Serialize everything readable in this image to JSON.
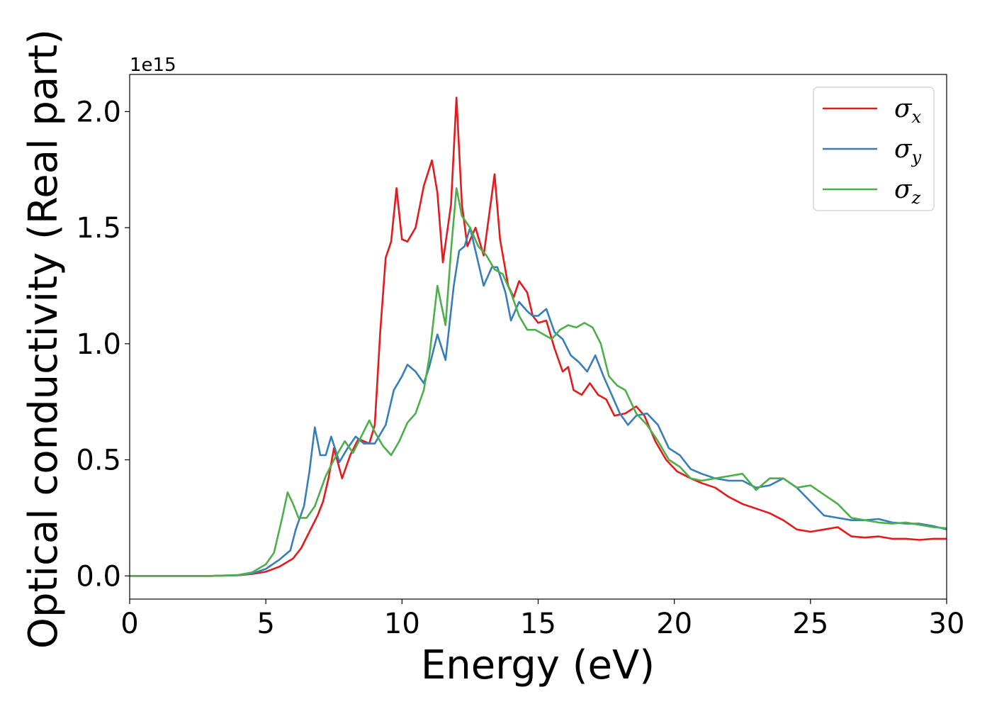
{
  "chart_data": {
    "type": "line",
    "xlabel": "Energy (eV)",
    "ylabel": "Optical conductivity (Real part)",
    "y_offset_text": "1e15",
    "xlim": [
      0,
      30
    ],
    "ylim": [
      -0.1,
      2.16
    ],
    "x_ticks": [
      0,
      5,
      10,
      15,
      20,
      25,
      30
    ],
    "x_tick_labels": [
      "0",
      "5",
      "10",
      "15",
      "20",
      "25",
      "30"
    ],
    "y_ticks": [
      0.0,
      0.5,
      1.0,
      1.5,
      2.0
    ],
    "y_tick_labels": [
      "0.0",
      "0.5",
      "1.0",
      "1.5",
      "2.0"
    ],
    "grid": false,
    "legend_position": "top-right",
    "series": [
      {
        "name": "σ",
        "subscript": "x",
        "color": "#e41a1c",
        "points": [
          [
            0,
            0
          ],
          [
            3,
            0
          ],
          [
            4,
            0.003
          ],
          [
            4.5,
            0.008
          ],
          [
            5,
            0.018
          ],
          [
            5.5,
            0.04
          ],
          [
            6,
            0.075
          ],
          [
            6.3,
            0.12
          ],
          [
            6.6,
            0.19
          ],
          [
            6.9,
            0.26
          ],
          [
            7.1,
            0.32
          ],
          [
            7.3,
            0.42
          ],
          [
            7.5,
            0.55
          ],
          [
            7.8,
            0.42
          ],
          [
            8.1,
            0.52
          ],
          [
            8.4,
            0.59
          ],
          [
            8.8,
            0.57
          ],
          [
            9.0,
            0.65
          ],
          [
            9.2,
            1.05
          ],
          [
            9.4,
            1.37
          ],
          [
            9.6,
            1.44
          ],
          [
            9.8,
            1.67
          ],
          [
            10.0,
            1.45
          ],
          [
            10.2,
            1.44
          ],
          [
            10.5,
            1.5
          ],
          [
            10.8,
            1.68
          ],
          [
            11.1,
            1.79
          ],
          [
            11.3,
            1.65
          ],
          [
            11.5,
            1.35
          ],
          [
            11.8,
            1.6
          ],
          [
            12.0,
            2.06
          ],
          [
            12.2,
            1.6
          ],
          [
            12.4,
            1.42
          ],
          [
            12.7,
            1.5
          ],
          [
            13.0,
            1.38
          ],
          [
            13.4,
            1.73
          ],
          [
            13.6,
            1.45
          ],
          [
            13.9,
            1.25
          ],
          [
            14.1,
            1.2
          ],
          [
            14.3,
            1.27
          ],
          [
            14.6,
            1.22
          ],
          [
            14.8,
            1.12
          ],
          [
            15.0,
            1.09
          ],
          [
            15.3,
            1.1
          ],
          [
            15.6,
            0.98
          ],
          [
            15.9,
            0.88
          ],
          [
            16.1,
            0.9
          ],
          [
            16.3,
            0.8
          ],
          [
            16.6,
            0.78
          ],
          [
            16.9,
            0.83
          ],
          [
            17.2,
            0.78
          ],
          [
            17.5,
            0.76
          ],
          [
            17.8,
            0.69
          ],
          [
            18.2,
            0.7
          ],
          [
            18.6,
            0.73
          ],
          [
            18.9,
            0.69
          ],
          [
            19.3,
            0.58
          ],
          [
            19.7,
            0.5
          ],
          [
            20.1,
            0.45
          ],
          [
            20.6,
            0.42
          ],
          [
            21.0,
            0.4
          ],
          [
            21.5,
            0.38
          ],
          [
            22.0,
            0.34
          ],
          [
            22.5,
            0.31
          ],
          [
            23.0,
            0.29
          ],
          [
            23.5,
            0.27
          ],
          [
            24.0,
            0.24
          ],
          [
            24.5,
            0.2
          ],
          [
            25.0,
            0.19
          ],
          [
            25.5,
            0.2
          ],
          [
            26.0,
            0.21
          ],
          [
            26.5,
            0.17
          ],
          [
            27.0,
            0.165
          ],
          [
            27.5,
            0.17
          ],
          [
            28.0,
            0.16
          ],
          [
            28.5,
            0.16
          ],
          [
            29.0,
            0.155
          ],
          [
            29.5,
            0.16
          ],
          [
            30,
            0.16
          ]
        ]
      },
      {
        "name": "σ",
        "subscript": "y",
        "color": "#377eb8",
        "points": [
          [
            0,
            0
          ],
          [
            3,
            0
          ],
          [
            4,
            0.003
          ],
          [
            4.5,
            0.01
          ],
          [
            5,
            0.03
          ],
          [
            5.5,
            0.07
          ],
          [
            5.9,
            0.11
          ],
          [
            6.1,
            0.2
          ],
          [
            6.4,
            0.3
          ],
          [
            6.6,
            0.45
          ],
          [
            6.8,
            0.64
          ],
          [
            7.0,
            0.52
          ],
          [
            7.2,
            0.52
          ],
          [
            7.4,
            0.6
          ],
          [
            7.7,
            0.49
          ],
          [
            8.0,
            0.55
          ],
          [
            8.3,
            0.6
          ],
          [
            8.6,
            0.57
          ],
          [
            9.0,
            0.57
          ],
          [
            9.4,
            0.65
          ],
          [
            9.7,
            0.8
          ],
          [
            10.0,
            0.86
          ],
          [
            10.2,
            0.91
          ],
          [
            10.5,
            0.88
          ],
          [
            10.8,
            0.83
          ],
          [
            11.0,
            0.9
          ],
          [
            11.3,
            1.04
          ],
          [
            11.6,
            0.93
          ],
          [
            11.9,
            1.25
          ],
          [
            12.1,
            1.4
          ],
          [
            12.3,
            1.42
          ],
          [
            12.5,
            1.5
          ],
          [
            12.8,
            1.35
          ],
          [
            13.0,
            1.25
          ],
          [
            13.3,
            1.33
          ],
          [
            13.5,
            1.33
          ],
          [
            13.8,
            1.22
          ],
          [
            14.0,
            1.1
          ],
          [
            14.3,
            1.18
          ],
          [
            14.6,
            1.14
          ],
          [
            14.8,
            1.12
          ],
          [
            15.0,
            1.12
          ],
          [
            15.3,
            1.15
          ],
          [
            15.6,
            1.05
          ],
          [
            15.9,
            1.02
          ],
          [
            16.2,
            0.95
          ],
          [
            16.5,
            0.92
          ],
          [
            16.8,
            0.88
          ],
          [
            17.1,
            0.95
          ],
          [
            17.4,
            0.86
          ],
          [
            17.7,
            0.78
          ],
          [
            18.0,
            0.7
          ],
          [
            18.3,
            0.65
          ],
          [
            18.6,
            0.69
          ],
          [
            19.0,
            0.7
          ],
          [
            19.4,
            0.65
          ],
          [
            19.8,
            0.55
          ],
          [
            20.2,
            0.52
          ],
          [
            20.6,
            0.46
          ],
          [
            21.0,
            0.44
          ],
          [
            21.5,
            0.42
          ],
          [
            22.0,
            0.41
          ],
          [
            22.5,
            0.41
          ],
          [
            23.0,
            0.38
          ],
          [
            23.5,
            0.39
          ],
          [
            24.0,
            0.42
          ],
          [
            24.5,
            0.38
          ],
          [
            25.0,
            0.32
          ],
          [
            25.5,
            0.26
          ],
          [
            26.0,
            0.25
          ],
          [
            26.5,
            0.24
          ],
          [
            27.0,
            0.24
          ],
          [
            27.5,
            0.245
          ],
          [
            28.0,
            0.23
          ],
          [
            28.5,
            0.225
          ],
          [
            29.0,
            0.225
          ],
          [
            29.5,
            0.215
          ],
          [
            30,
            0.2
          ]
        ]
      },
      {
        "name": "σ",
        "subscript": "z",
        "color": "#4daf4a",
        "points": [
          [
            0,
            0
          ],
          [
            3,
            0
          ],
          [
            4,
            0.004
          ],
          [
            4.5,
            0.015
          ],
          [
            5,
            0.05
          ],
          [
            5.3,
            0.1
          ],
          [
            5.6,
            0.25
          ],
          [
            5.8,
            0.36
          ],
          [
            6.0,
            0.31
          ],
          [
            6.2,
            0.25
          ],
          [
            6.5,
            0.25
          ],
          [
            6.8,
            0.3
          ],
          [
            7.2,
            0.43
          ],
          [
            7.5,
            0.5
          ],
          [
            7.9,
            0.58
          ],
          [
            8.2,
            0.53
          ],
          [
            8.5,
            0.6
          ],
          [
            8.8,
            0.67
          ],
          [
            9.0,
            0.62
          ],
          [
            9.3,
            0.56
          ],
          [
            9.6,
            0.52
          ],
          [
            9.9,
            0.58
          ],
          [
            10.2,
            0.66
          ],
          [
            10.5,
            0.7
          ],
          [
            10.8,
            0.8
          ],
          [
            11.0,
            0.94
          ],
          [
            11.3,
            1.25
          ],
          [
            11.6,
            1.08
          ],
          [
            11.8,
            1.4
          ],
          [
            12.0,
            1.67
          ],
          [
            12.2,
            1.55
          ],
          [
            12.5,
            1.5
          ],
          [
            12.8,
            1.42
          ],
          [
            13.1,
            1.38
          ],
          [
            13.4,
            1.32
          ],
          [
            13.7,
            1.3
          ],
          [
            14.0,
            1.22
          ],
          [
            14.3,
            1.12
          ],
          [
            14.6,
            1.06
          ],
          [
            14.9,
            1.06
          ],
          [
            15.2,
            1.04
          ],
          [
            15.5,
            1.02
          ],
          [
            15.8,
            1.06
          ],
          [
            16.1,
            1.08
          ],
          [
            16.4,
            1.07
          ],
          [
            16.7,
            1.09
          ],
          [
            17.0,
            1.07
          ],
          [
            17.3,
            1.0
          ],
          [
            17.6,
            0.86
          ],
          [
            17.9,
            0.82
          ],
          [
            18.2,
            0.8
          ],
          [
            18.6,
            0.7
          ],
          [
            19.0,
            0.65
          ],
          [
            19.4,
            0.58
          ],
          [
            19.8,
            0.5
          ],
          [
            20.2,
            0.47
          ],
          [
            20.6,
            0.42
          ],
          [
            21.0,
            0.41
          ],
          [
            21.5,
            0.42
          ],
          [
            22.0,
            0.43
          ],
          [
            22.5,
            0.44
          ],
          [
            23.0,
            0.37
          ],
          [
            23.5,
            0.42
          ],
          [
            24.0,
            0.42
          ],
          [
            24.5,
            0.38
          ],
          [
            25.0,
            0.39
          ],
          [
            25.5,
            0.35
          ],
          [
            26.0,
            0.31
          ],
          [
            26.5,
            0.25
          ],
          [
            27.0,
            0.24
          ],
          [
            27.5,
            0.23
          ],
          [
            28.0,
            0.225
          ],
          [
            28.5,
            0.23
          ],
          [
            29.0,
            0.22
          ],
          [
            29.5,
            0.21
          ],
          [
            30,
            0.205
          ]
        ]
      }
    ]
  }
}
